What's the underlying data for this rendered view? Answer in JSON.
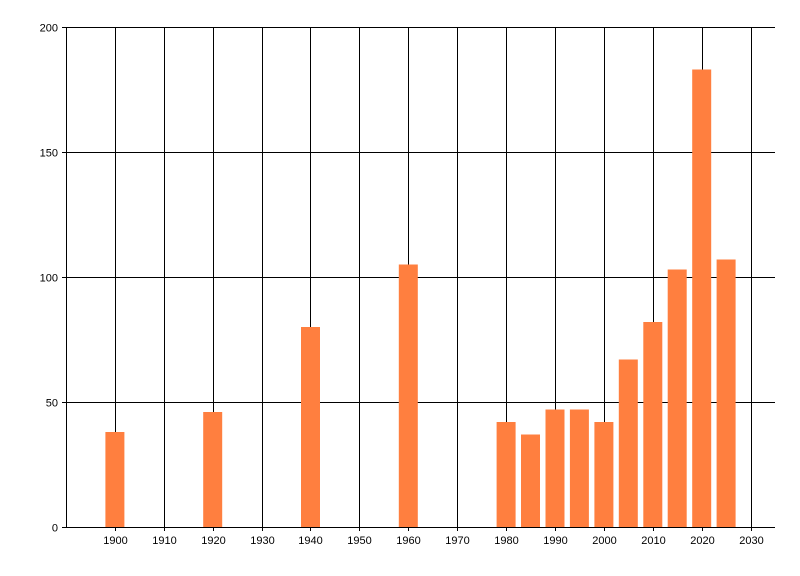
{
  "chart_data": {
    "type": "bar",
    "title": "",
    "xlabel": "",
    "ylabel": "",
    "x": [
      1900,
      1920,
      1940,
      1960,
      1980,
      1985,
      1990,
      1995,
      2000,
      2005,
      2010,
      2015,
      2020,
      2025
    ],
    "values": [
      38,
      46,
      80,
      105,
      42,
      37,
      47,
      47,
      42,
      67,
      82,
      103,
      183,
      107
    ],
    "xlim": [
      1890,
      2035
    ],
    "ylim": [
      0,
      200
    ],
    "x_ticks": [
      1900,
      1910,
      1920,
      1930,
      1940,
      1950,
      1960,
      1970,
      1980,
      1990,
      2000,
      2010,
      2020,
      2030
    ],
    "y_ticks": [
      0,
      50,
      100,
      150,
      200
    ],
    "grid": true,
    "bar_color": "#ff7f3f",
    "grid_color": "#000000"
  }
}
